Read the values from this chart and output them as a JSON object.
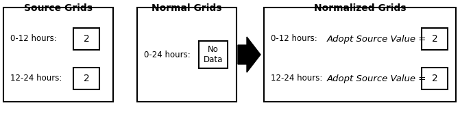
{
  "title_source": "Source Grids",
  "title_normal": "Normal Grids",
  "title_normalized": "Normalized Grids",
  "source_label1": "0-12 hours:",
  "source_val1": "2",
  "source_label2": "12-24 hours:",
  "source_val2": "2",
  "normal_label": "0-24 hours:",
  "normal_val": "No\nData",
  "norm_label1": "0-12 hours:",
  "norm_formula1": "Adopt Source Value =",
  "norm_val1": "2",
  "norm_label2": "12-24 hours:",
  "norm_formula2": "Adopt Source Value =",
  "norm_val2": "2",
  "bg_color": "#ffffff",
  "title_fontsize": 10,
  "label_fontsize": 8.5,
  "val_fontsize": 10,
  "formula_fontsize": 9.5
}
